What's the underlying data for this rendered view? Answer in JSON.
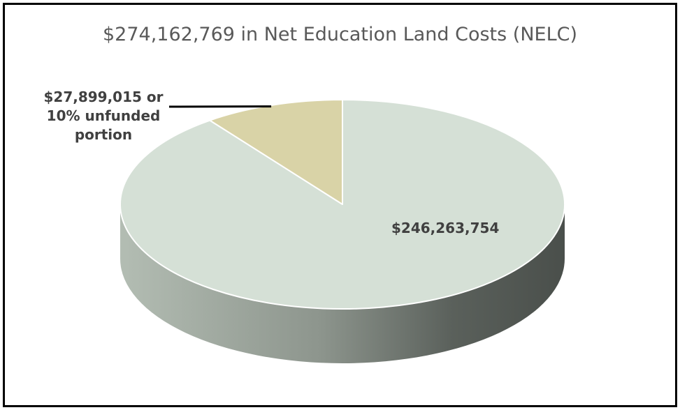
{
  "chart_data": {
    "type": "pie",
    "title": "$274,162,769 in Net Education Land Costs (NELC)",
    "slices": [
      {
        "value": 246263754,
        "label": "$246,263,754",
        "color": "#d5e0d6"
      },
      {
        "value": 27899015,
        "label_lines": [
          "$27,899,015 or",
          "10% unfunded",
          "portion"
        ],
        "color": "#d9d3a7"
      }
    ],
    "total": 274162769,
    "style": "3d"
  }
}
